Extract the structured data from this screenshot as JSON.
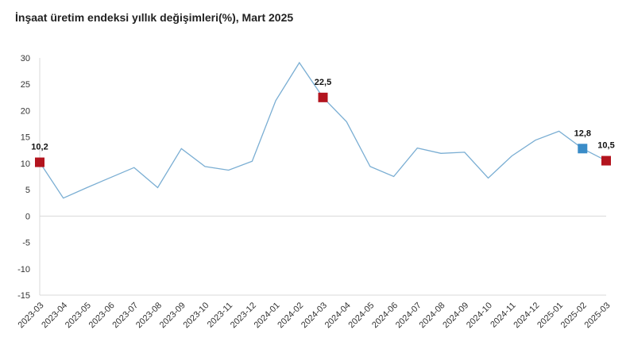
{
  "chart_data": {
    "type": "line",
    "title": "İnşaat üretim endeksi yıllık değişimleri(%), Mart 2025",
    "xlabel": "",
    "ylabel": "",
    "ylim": [
      -15,
      30
    ],
    "yticks": [
      30,
      25,
      20,
      15,
      10,
      5,
      0,
      -5,
      -10,
      -15
    ],
    "grid": false,
    "categories": [
      "2023-03",
      "2023-04",
      "2023-05",
      "2023-06",
      "2023-07",
      "2023-08",
      "2023-09",
      "2023-10",
      "2023-11",
      "2023-12",
      "2024-01",
      "2024-02",
      "2024-03",
      "2024-04",
      "2024-05",
      "2024-06",
      "2024-07",
      "2024-08",
      "2024-09",
      "2024-10",
      "2024-11",
      "2024-12",
      "2025-01",
      "2025-02",
      "2025-03"
    ],
    "series": [
      {
        "values": [
          10.2,
          3.4,
          5.4,
          7.3,
          9.2,
          5.4,
          12.8,
          9.4,
          8.7,
          10.4,
          21.9,
          29.1,
          22.5,
          17.9,
          9.4,
          7.5,
          12.9,
          11.9,
          12.1,
          7.2,
          11.4,
          14.4,
          16.1,
          12.8,
          10.5
        ],
        "color": "#7aaed3"
      }
    ],
    "highlights": [
      {
        "category": "2023-03",
        "value": 10.2,
        "label": "10,2",
        "color": "#b3141e"
      },
      {
        "category": "2024-03",
        "value": 22.5,
        "label": "22,5",
        "color": "#b3141e"
      },
      {
        "category": "2025-02",
        "value": 12.8,
        "label": "12,8",
        "color": "#3a8cc8"
      },
      {
        "category": "2025-03",
        "value": 10.5,
        "label": "10,5",
        "color": "#b3141e"
      }
    ],
    "axis_color": "#d9d9d9"
  }
}
